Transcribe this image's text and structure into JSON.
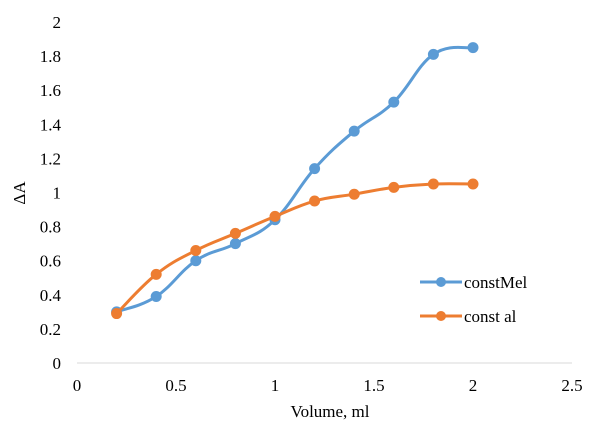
{
  "chart_data": {
    "type": "line",
    "title": "",
    "xlabel": "Volume, ml",
    "ylabel": "ΔA",
    "xlim": [
      0,
      2.5
    ],
    "ylim": [
      0,
      2
    ],
    "xticks": [
      0,
      0.5,
      1,
      1.5,
      2,
      2.5
    ],
    "yticks": [
      0,
      0.2,
      0.4,
      0.6,
      0.8,
      1,
      1.2,
      1.4,
      1.6,
      1.8,
      2
    ],
    "xtick_labels": [
      "0",
      "0.5",
      "1",
      "1.5",
      "2",
      "2.5"
    ],
    "ytick_labels": [
      "0",
      "0.2",
      "0.4",
      "0.6",
      "0.8",
      "1",
      "1.2",
      "1.4",
      "1.6",
      "1.8",
      "2"
    ],
    "grid": false,
    "legend_position": "right",
    "smooth": true,
    "series": [
      {
        "name": "constMel",
        "color": "#5B9BD5",
        "x": [
          0.2,
          0.4,
          0.6,
          0.8,
          1.0,
          1.2,
          1.4,
          1.6,
          1.8,
          2.0
        ],
        "y": [
          0.3,
          0.39,
          0.6,
          0.7,
          0.84,
          1.14,
          1.36,
          1.53,
          1.81,
          1.85
        ]
      },
      {
        "name": "const al",
        "color": "#ED7D31",
        "x": [
          0.2,
          0.4,
          0.6,
          0.8,
          1.0,
          1.2,
          1.4,
          1.6,
          1.8,
          2.0
        ],
        "y": [
          0.29,
          0.52,
          0.66,
          0.76,
          0.86,
          0.95,
          0.99,
          1.03,
          1.05,
          1.05
        ]
      }
    ]
  }
}
